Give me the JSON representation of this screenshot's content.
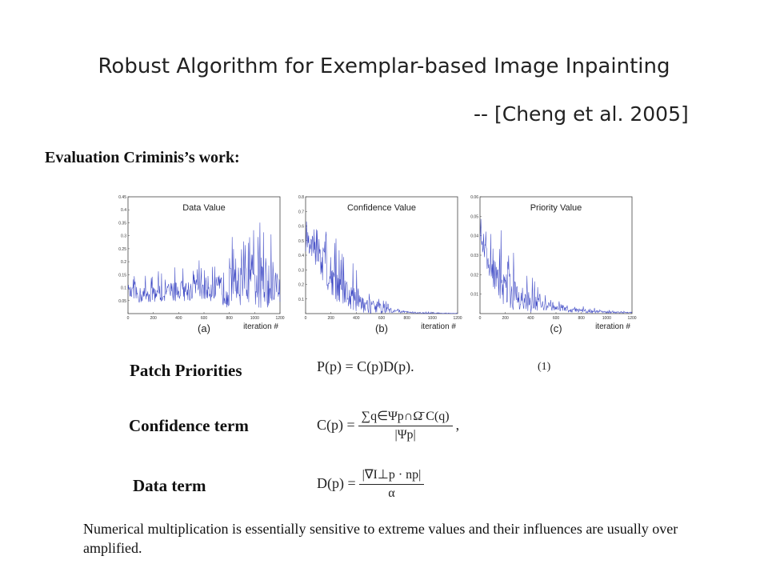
{
  "slide": {
    "title": "Robust Algorithm for Exemplar-based Image Inpainting",
    "citation": "-- [Cheng et al. 2005]",
    "section": "Evaluation Criminis’s work:",
    "labels": {
      "patch": "Patch Priorities",
      "confidence": "Confidence term",
      "data": "Data term"
    },
    "equations": {
      "priority": "P(p) = C(p)D(p).",
      "priority_number": "(1)",
      "confidence_lhs": "C(p) =",
      "confidence_num": "∑q∈Ψp∩Ω̄ C(q)",
      "confidence_den": "|Ψp|",
      "confidence_tail": ",",
      "data_lhs": "D(p) =",
      "data_num": "|∇I⊥p · np|",
      "data_den": "α"
    },
    "note": "Numerical multiplication is essentially sensitive to extreme values and their influences are usually over amplified."
  },
  "chart_data": [
    {
      "type": "line",
      "title": "Data Value",
      "caption": "(a)",
      "xlabel": "iteration #",
      "ylabel": "",
      "xlim": [
        0,
        1200
      ],
      "ylim": [
        0,
        0.45
      ],
      "xticks": [
        0,
        200,
        400,
        600,
        800,
        1000,
        1200
      ],
      "yticks": [
        0.05,
        0.1,
        0.15,
        0.2,
        0.25,
        0.3,
        0.35,
        0.4,
        0.45
      ],
      "ytick_labels": [
        "0.05",
        "0.1",
        "0.15",
        "0.2",
        "0.25",
        "0.3",
        "0.35",
        "0.4",
        "0.45"
      ],
      "color": "#3b46c4",
      "x": [
        0,
        100,
        200,
        300,
        400,
        500,
        600,
        700,
        800,
        900,
        1000,
        1100,
        1200
      ],
      "values": [
        0.08,
        0.07,
        0.08,
        0.08,
        0.09,
        0.09,
        0.1,
        0.09,
        0.1,
        0.11,
        0.11,
        0.13,
        0.1
      ],
      "max_values": [
        0.14,
        0.15,
        0.17,
        0.18,
        0.19,
        0.2,
        0.22,
        0.22,
        0.3,
        0.3,
        0.33,
        0.4,
        0.25
      ]
    },
    {
      "type": "line",
      "title": "Confidence Value",
      "caption": "(b)",
      "xlabel": "iteration #",
      "ylabel": "",
      "xlim": [
        0,
        1200
      ],
      "ylim": [
        0,
        0.8
      ],
      "xticks": [
        0,
        200,
        400,
        600,
        800,
        1000,
        1200
      ],
      "yticks": [
        0.1,
        0.2,
        0.3,
        0.4,
        0.5,
        0.6,
        0.7,
        0.8
      ],
      "ytick_labels": [
        "0.1",
        "0.2",
        "0.3",
        "0.4",
        "0.5",
        "0.6",
        "0.7",
        "0.8"
      ],
      "color": "#3b46c4",
      "x": [
        0,
        100,
        200,
        300,
        400,
        500,
        600,
        700,
        800,
        900,
        1000,
        1100,
        1200
      ],
      "values": [
        0.5,
        0.4,
        0.25,
        0.15,
        0.1,
        0.06,
        0.03,
        0.02,
        0.01,
        0.005,
        0.003,
        0.002,
        0.001
      ],
      "max_values": [
        0.7,
        0.72,
        0.6,
        0.4,
        0.35,
        0.2,
        0.12,
        0.05,
        0.03,
        0.02,
        0.01,
        0.005,
        0.003
      ]
    },
    {
      "type": "line",
      "title": "Priority Value",
      "caption": "(c)",
      "xlabel": "iteration #",
      "ylabel": "",
      "xlim": [
        0,
        1200
      ],
      "ylim": [
        0,
        0.06
      ],
      "xticks": [
        0,
        200,
        400,
        600,
        800,
        1000,
        1200
      ],
      "yticks": [
        0.01,
        0.02,
        0.03,
        0.04,
        0.05,
        0.06
      ],
      "ytick_labels": [
        "0.01",
        "0.02",
        "0.03",
        "0.04",
        "0.05",
        "0.06"
      ],
      "color": "#3b46c4",
      "x": [
        0,
        100,
        200,
        300,
        400,
        500,
        600,
        700,
        800,
        900,
        1000,
        1100,
        1200
      ],
      "values": [
        0.04,
        0.02,
        0.012,
        0.008,
        0.006,
        0.004,
        0.003,
        0.002,
        0.0015,
        0.001,
        0.0008,
        0.0006,
        0.0005
      ],
      "max_values": [
        0.05,
        0.04,
        0.045,
        0.025,
        0.02,
        0.01,
        0.007,
        0.005,
        0.004,
        0.003,
        0.002,
        0.0015,
        0.001
      ]
    }
  ]
}
